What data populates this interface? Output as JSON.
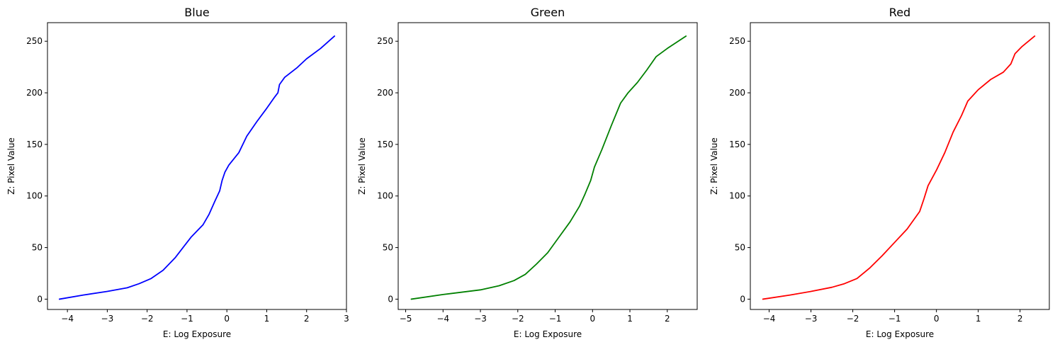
{
  "chart_data": [
    {
      "type": "line",
      "title": "Blue",
      "xlabel": "E: Log Exposure",
      "ylabel": "Z: Pixel Value",
      "xlim": [
        -4.5,
        3.0
      ],
      "ylim": [
        -10,
        268
      ],
      "xticks": [
        -4,
        -3,
        -2,
        -1,
        0,
        1,
        2,
        3
      ],
      "xtick_labels": [
        "−4",
        "−3",
        "−2",
        "−1",
        "0",
        "1",
        "2",
        "3"
      ],
      "yticks": [
        0,
        50,
        100,
        150,
        200,
        250
      ],
      "ytick_labels": [
        "0",
        "50",
        "100",
        "150",
        "200",
        "250"
      ],
      "grid": false,
      "series": [
        {
          "color": "#0000ff",
          "points": [
            [
              -4.2,
              0
            ],
            [
              -3.6,
              4
            ],
            [
              -3.0,
              7.5
            ],
            [
              -2.5,
              11
            ],
            [
              -2.2,
              15
            ],
            [
              -1.9,
              20
            ],
            [
              -1.6,
              28
            ],
            [
              -1.3,
              40
            ],
            [
              -1.1,
              50
            ],
            [
              -0.9,
              60
            ],
            [
              -0.6,
              72
            ],
            [
              -0.45,
              82
            ],
            [
              -0.3,
              95
            ],
            [
              -0.18,
              105
            ],
            [
              -0.12,
              115
            ],
            [
              -0.05,
              123
            ],
            [
              0.05,
              130
            ],
            [
              0.3,
              142
            ],
            [
              0.5,
              158
            ],
            [
              0.75,
              172
            ],
            [
              1.0,
              185
            ],
            [
              1.2,
              196
            ],
            [
              1.28,
              200
            ],
            [
              1.32,
              208
            ],
            [
              1.45,
              215
            ],
            [
              1.75,
              224
            ],
            [
              2.0,
              233
            ],
            [
              2.35,
              243
            ],
            [
              2.7,
              255
            ]
          ]
        }
      ]
    },
    {
      "type": "line",
      "title": "Green",
      "xlabel": "E: Log Exposure",
      "ylabel": "Z: Pixel Value",
      "xlim": [
        -5.2,
        2.8
      ],
      "ylim": [
        -10,
        268
      ],
      "xticks": [
        -5,
        -4,
        -3,
        -2,
        -1,
        0,
        1,
        2
      ],
      "xtick_labels": [
        "−5",
        "−4",
        "−3",
        "−2",
        "−1",
        "0",
        "1",
        "2"
      ],
      "yticks": [
        0,
        50,
        100,
        150,
        200,
        250
      ],
      "ytick_labels": [
        "0",
        "50",
        "100",
        "150",
        "200",
        "250"
      ],
      "grid": false,
      "series": [
        {
          "color": "#008000",
          "points": [
            [
              -4.85,
              0
            ],
            [
              -4.0,
              4.5
            ],
            [
              -3.0,
              9
            ],
            [
              -2.5,
              13
            ],
            [
              -2.1,
              18
            ],
            [
              -1.8,
              24
            ],
            [
              -1.5,
              34
            ],
            [
              -1.2,
              45
            ],
            [
              -0.9,
              60
            ],
            [
              -0.6,
              75
            ],
            [
              -0.35,
              90
            ],
            [
              -0.2,
              102
            ],
            [
              -0.05,
              115
            ],
            [
              0.05,
              128
            ],
            [
              0.25,
              145
            ],
            [
              0.5,
              168
            ],
            [
              0.75,
              190
            ],
            [
              0.95,
              200
            ],
            [
              1.2,
              210
            ],
            [
              1.45,
              222
            ],
            [
              1.7,
              235
            ],
            [
              2.0,
              243
            ],
            [
              2.5,
              255
            ]
          ]
        }
      ]
    },
    {
      "type": "line",
      "title": "Red",
      "xlabel": "E: Log Exposure",
      "ylabel": "Z: Pixel Value",
      "xlim": [
        -4.45,
        2.7
      ],
      "ylim": [
        -10,
        268
      ],
      "xticks": [
        -4,
        -3,
        -2,
        -1,
        0,
        1,
        2
      ],
      "xtick_labels": [
        "−4",
        "−3",
        "−2",
        "−1",
        "0",
        "1",
        "2"
      ],
      "yticks": [
        0,
        50,
        100,
        150,
        200,
        250
      ],
      "ytick_labels": [
        "0",
        "50",
        "100",
        "150",
        "200",
        "250"
      ],
      "grid": false,
      "series": [
        {
          "color": "#ff0000",
          "points": [
            [
              -4.15,
              0
            ],
            [
              -3.5,
              4
            ],
            [
              -3.0,
              7.5
            ],
            [
              -2.5,
              11.5
            ],
            [
              -2.2,
              15
            ],
            [
              -1.9,
              20
            ],
            [
              -1.6,
              30
            ],
            [
              -1.3,
              42
            ],
            [
              -1.0,
              55
            ],
            [
              -0.7,
              68
            ],
            [
              -0.4,
              85
            ],
            [
              -0.3,
              97
            ],
            [
              -0.2,
              110
            ],
            [
              0.0,
              125
            ],
            [
              0.2,
              142
            ],
            [
              0.4,
              162
            ],
            [
              0.6,
              178
            ],
            [
              0.75,
              192
            ],
            [
              1.0,
              203
            ],
            [
              1.3,
              213
            ],
            [
              1.6,
              220
            ],
            [
              1.78,
              228
            ],
            [
              1.88,
              238
            ],
            [
              2.05,
              245
            ],
            [
              2.35,
              255
            ]
          ]
        }
      ]
    }
  ]
}
